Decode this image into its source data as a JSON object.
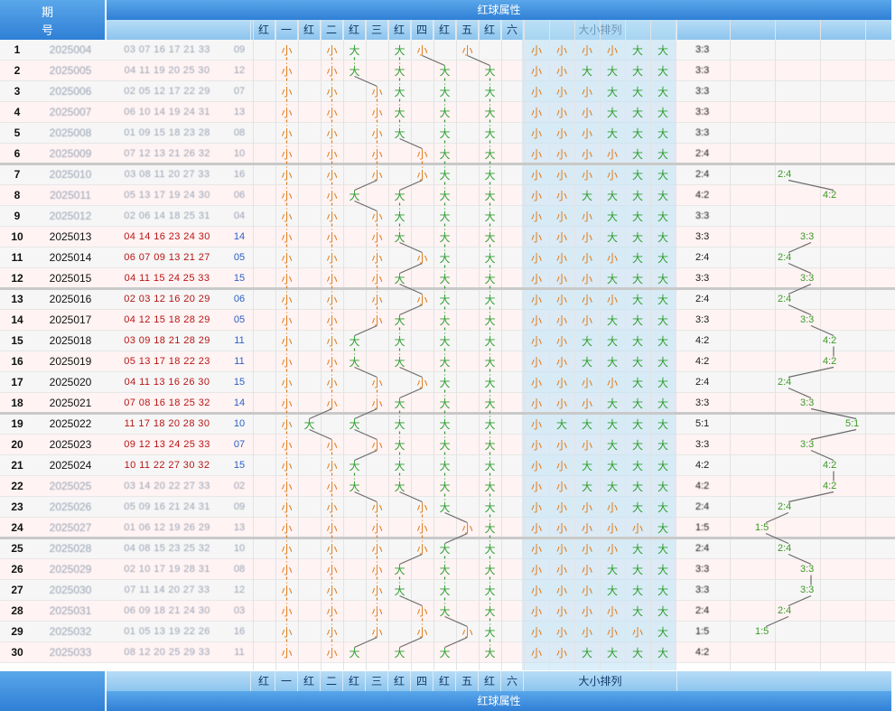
{
  "header": {
    "issue_top": "期",
    "issue_bottom": "号",
    "attr_title": "红球属性",
    "cols": [
      "红",
      "一",
      "红",
      "二",
      "红",
      "三",
      "红",
      "四",
      "红",
      "五",
      "红",
      "六"
    ],
    "size_title": "大小排列"
  },
  "footer": {
    "cols": [
      "红",
      "一",
      "红",
      "二",
      "红",
      "三",
      "红",
      "四",
      "红",
      "五",
      "红",
      "六"
    ],
    "size_title": "大小排列",
    "attr_title": "红球属性"
  },
  "rows": [
    {
      "n": "1",
      "issue": "2025004",
      "reds": "03 07 16 17 21 33",
      "blue": "09",
      "pos": [
        1,
        3,
        4,
        6,
        7,
        9
      ],
      "ratio": "3:3",
      "blur": true
    },
    {
      "n": "2",
      "issue": "2025005",
      "reds": "04 11 19 20 25 30",
      "blue": "12",
      "pos": [
        1,
        3,
        4,
        6,
        8,
        10
      ],
      "ratio": "3:3",
      "blur": true
    },
    {
      "n": "3",
      "issue": "2025006",
      "reds": "02 05 12 17 22 29",
      "blue": "07",
      "pos": [
        1,
        3,
        5,
        6,
        8,
        10
      ],
      "ratio": "3:3",
      "blur": true
    },
    {
      "n": "4",
      "issue": "2025007",
      "reds": "06 10 14 19 24 31",
      "blue": "13",
      "pos": [
        1,
        3,
        5,
        6,
        8,
        10
      ],
      "ratio": "3:3",
      "blur": true
    },
    {
      "n": "5",
      "issue": "2025008",
      "reds": "01 09 15 18 23 28",
      "blue": "08",
      "pos": [
        1,
        3,
        5,
        6,
        8,
        10
      ],
      "ratio": "3:3",
      "blur": true
    },
    {
      "n": "6",
      "issue": "2025009",
      "reds": "07 12 13 21 26 32",
      "blue": "10",
      "pos": [
        1,
        3,
        5,
        7,
        8,
        10
      ],
      "ratio": "2:4",
      "blur": true
    },
    {
      "n": "7",
      "issue": "2025010",
      "reds": "03 08 11 20 27 33",
      "blue": "16",
      "pos": [
        1,
        3,
        5,
        7,
        8,
        10
      ],
      "ratio": "2:4",
      "rt": "2:4",
      "blur": true
    },
    {
      "n": "8",
      "issue": "2025011",
      "reds": "05 13 17 19 24 30",
      "blue": "06",
      "pos": [
        1,
        3,
        4,
        6,
        8,
        10
      ],
      "ratio": "4:2",
      "rt": "4:2",
      "blur": true
    },
    {
      "n": "9",
      "issue": "2025012",
      "reds": "02 06 14 18 25 31",
      "blue": "04",
      "pos": [
        1,
        3,
        5,
        6,
        8,
        10
      ],
      "ratio": "3:3",
      "blur": true
    },
    {
      "n": "10",
      "issue": "2025013",
      "reds": "04 14 16 23 24 30",
      "blue": "14",
      "pos": [
        1,
        3,
        5,
        6,
        8,
        10
      ],
      "ratio": "3:3",
      "rt": "3:3"
    },
    {
      "n": "11",
      "issue": "2025014",
      "reds": "06 07 09 13 21 27",
      "blue": "05",
      "pos": [
        1,
        3,
        5,
        7,
        8,
        10
      ],
      "ratio": "2:4",
      "rt": "2:4"
    },
    {
      "n": "12",
      "issue": "2025015",
      "reds": "04 11 15 24 25 33",
      "blue": "15",
      "pos": [
        1,
        3,
        5,
        6,
        8,
        10
      ],
      "ratio": "3:3",
      "rt": "3:3"
    },
    {
      "n": "13",
      "issue": "2025016",
      "reds": "02 03 12 16 20 29",
      "blue": "06",
      "pos": [
        1,
        3,
        5,
        7,
        8,
        10
      ],
      "ratio": "2:4",
      "rt": "2:4"
    },
    {
      "n": "14",
      "issue": "2025017",
      "reds": "04 12 15 18 28 29",
      "blue": "05",
      "pos": [
        1,
        3,
        5,
        6,
        8,
        10
      ],
      "ratio": "3:3",
      "rt": "3:3"
    },
    {
      "n": "15",
      "issue": "2025018",
      "reds": "03 09 18 21 28 29",
      "blue": "11",
      "pos": [
        1,
        3,
        4,
        6,
        8,
        10
      ],
      "ratio": "4:2",
      "rt": "4:2"
    },
    {
      "n": "16",
      "issue": "2025019",
      "reds": "05 13 17 18 22 23",
      "blue": "11",
      "pos": [
        1,
        3,
        4,
        6,
        8,
        10
      ],
      "ratio": "4:2",
      "rt": "4:2"
    },
    {
      "n": "17",
      "issue": "2025020",
      "reds": "04 11 13 16 26 30",
      "blue": "15",
      "pos": [
        1,
        3,
        5,
        7,
        8,
        10
      ],
      "ratio": "2:4",
      "rt": "2:4"
    },
    {
      "n": "18",
      "issue": "2025021",
      "reds": "07 08 16 18 25 32",
      "blue": "14",
      "pos": [
        1,
        3,
        5,
        6,
        8,
        10
      ],
      "ratio": "3:3",
      "rt": "3:3"
    },
    {
      "n": "19",
      "issue": "2025022",
      "reds": "11 17 18 20 28 30",
      "blue": "10",
      "pos": [
        1,
        2,
        4,
        6,
        8,
        10
      ],
      "ratio": "5:1",
      "rt": "5:1"
    },
    {
      "n": "20",
      "issue": "2025023",
      "reds": "09 12 13 24 25 33",
      "blue": "07",
      "pos": [
        1,
        3,
        5,
        6,
        8,
        10
      ],
      "ratio": "3:3",
      "rt": "3:3"
    },
    {
      "n": "21",
      "issue": "2025024",
      "reds": "10 11 22 27 30 32",
      "blue": "15",
      "pos": [
        1,
        3,
        4,
        6,
        8,
        10
      ],
      "ratio": "4:2",
      "rt": "4:2"
    },
    {
      "n": "22",
      "issue": "2025025",
      "reds": "03 14 20 22 27 33",
      "blue": "02",
      "pos": [
        1,
        3,
        4,
        6,
        8,
        10
      ],
      "ratio": "4:2",
      "rt": "4:2",
      "blur": true
    },
    {
      "n": "23",
      "issue": "2025026",
      "reds": "05 09 16 21 24 31",
      "blue": "09",
      "pos": [
        1,
        3,
        5,
        7,
        8,
        10
      ],
      "ratio": "2:4",
      "rt": "2:4",
      "blur": true
    },
    {
      "n": "24",
      "issue": "2025027",
      "reds": "01 06 12 19 26 29",
      "blue": "13",
      "pos": [
        1,
        3,
        5,
        7,
        9,
        10
      ],
      "ratio": "1:5",
      "rt": "1:5",
      "blur": true
    },
    {
      "n": "25",
      "issue": "2025028",
      "reds": "04 08 15 23 25 32",
      "blue": "10",
      "pos": [
        1,
        3,
        5,
        7,
        8,
        10
      ],
      "ratio": "2:4",
      "rt": "2:4",
      "blur": true
    },
    {
      "n": "26",
      "issue": "2025029",
      "reds": "02 10 17 19 28 31",
      "blue": "08",
      "pos": [
        1,
        3,
        5,
        6,
        8,
        10
      ],
      "ratio": "3:3",
      "rt": "3:3",
      "blur": true
    },
    {
      "n": "27",
      "issue": "2025030",
      "reds": "07 11 14 20 27 33",
      "blue": "12",
      "pos": [
        1,
        3,
        5,
        6,
        8,
        10
      ],
      "ratio": "3:3",
      "rt": "3:3",
      "blur": true
    },
    {
      "n": "28",
      "issue": "2025031",
      "reds": "06 09 18 21 24 30",
      "blue": "03",
      "pos": [
        1,
        3,
        5,
        7,
        8,
        10
      ],
      "ratio": "2:4",
      "rt": "2:4",
      "blur": true
    },
    {
      "n": "29",
      "issue": "2025032",
      "reds": "01 05 13 19 22 26",
      "blue": "16",
      "pos": [
        1,
        3,
        5,
        7,
        9,
        10
      ],
      "ratio": "1:5",
      "rt": "1:5",
      "blur": true
    },
    {
      "n": "30",
      "issue": "2025033",
      "reds": "08 12 20 25 29 33",
      "blue": "11",
      "pos": [
        1,
        3,
        4,
        6,
        8,
        10
      ],
      "ratio": "4:2",
      "blur": true
    }
  ],
  "labels": {
    "small": "小",
    "big": "大"
  },
  "colors": {
    "header_blue": "#2f7fd6",
    "small": "#e07b1a",
    "big": "#2f9e2f",
    "red_num": "#b81414",
    "blue_num": "#2c5fc7"
  }
}
